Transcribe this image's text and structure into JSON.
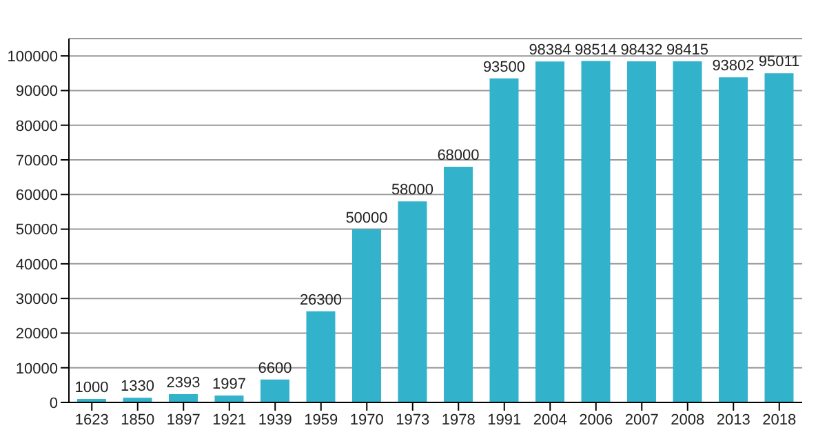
{
  "chart_data": {
    "type": "bar",
    "categories": [
      "1623",
      "1850",
      "1897",
      "1921",
      "1939",
      "1959",
      "1970",
      "1973",
      "1978",
      "1991",
      "2004",
      "2006",
      "2007",
      "2008",
      "2013",
      "2018"
    ],
    "values": [
      1000,
      1330,
      2393,
      1997,
      6600,
      26300,
      50000,
      58000,
      68000,
      93500,
      98384,
      98514,
      98432,
      98415,
      93802,
      95011
    ],
    "color": "#33b2cc",
    "ylim": [
      0,
      105000
    ],
    "yticks": [
      0,
      10000,
      20000,
      30000,
      40000,
      50000,
      60000,
      70000,
      80000,
      90000,
      100000
    ],
    "grid": "y",
    "data_labels": true,
    "legend": false
  }
}
